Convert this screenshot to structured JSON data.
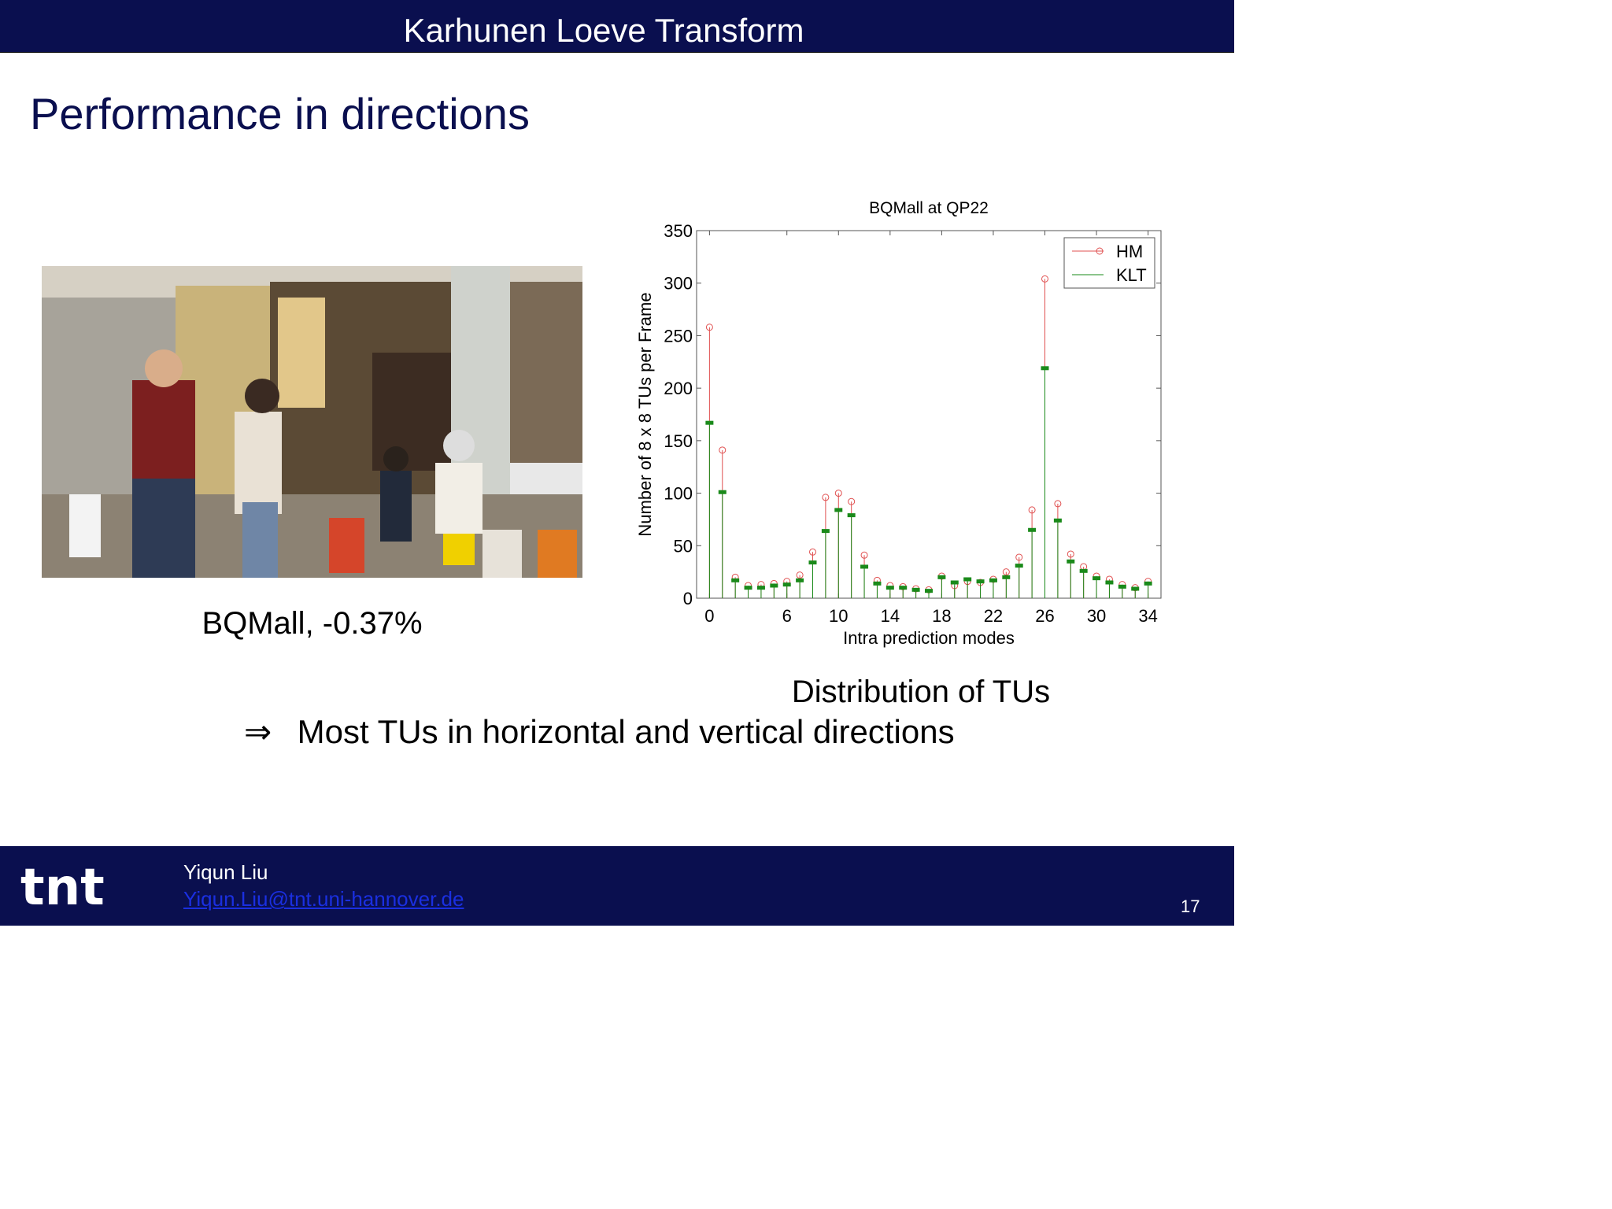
{
  "header": {
    "title": "Karhunen Loeve Transform"
  },
  "slide": {
    "heading": "Performance in directions"
  },
  "photo": {
    "caption": "BQMall, -0.37%"
  },
  "chart_caption": "Distribution of TUs",
  "conclusion": {
    "arrow": "⇒",
    "text": "Most TUs in horizontal and vertical directions"
  },
  "footer": {
    "logo_text": "tnt",
    "author": "Yiqun Liu",
    "email": "Yiqun.Liu@tnt.uni-hannover.de",
    "page_number": "17"
  },
  "colors": {
    "banner": "#0a0f4f",
    "hm": "#e05050",
    "klt": "#1a8a1a"
  },
  "chart_data": {
    "type": "stem",
    "title": "BQMall at QP22",
    "xlabel": "Intra prediction modes",
    "ylabel": "Number of 8 x 8 TUs per Frame",
    "xlim": [
      -1,
      35
    ],
    "ylim": [
      0,
      350
    ],
    "xticks": [
      0,
      6,
      10,
      14,
      18,
      22,
      26,
      30,
      34
    ],
    "yticks": [
      0,
      50,
      100,
      150,
      200,
      250,
      300,
      350
    ],
    "x": [
      0,
      1,
      2,
      3,
      4,
      5,
      6,
      7,
      8,
      9,
      10,
      11,
      12,
      13,
      14,
      15,
      16,
      17,
      18,
      19,
      20,
      21,
      22,
      23,
      24,
      25,
      26,
      27,
      28,
      29,
      30,
      31,
      32,
      33,
      34
    ],
    "legend_position": "top-right",
    "series": [
      {
        "name": "HM",
        "marker": "circle",
        "values": [
          258,
          141,
          20,
          12,
          13,
          14,
          16,
          22,
          44,
          96,
          100,
          92,
          41,
          17,
          12,
          11,
          9,
          8,
          21,
          12,
          16,
          15,
          18,
          25,
          39,
          84,
          304,
          90,
          42,
          30,
          21,
          18,
          13,
          10,
          16
        ]
      },
      {
        "name": "KLT",
        "marker": "bar",
        "values": [
          167,
          101,
          17,
          10,
          10,
          12,
          13,
          17,
          34,
          64,
          84,
          79,
          30,
          14,
          10,
          10,
          8,
          7,
          20,
          15,
          18,
          16,
          17,
          20,
          31,
          65,
          219,
          74,
          35,
          26,
          19,
          15,
          11,
          9,
          14
        ]
      }
    ]
  }
}
